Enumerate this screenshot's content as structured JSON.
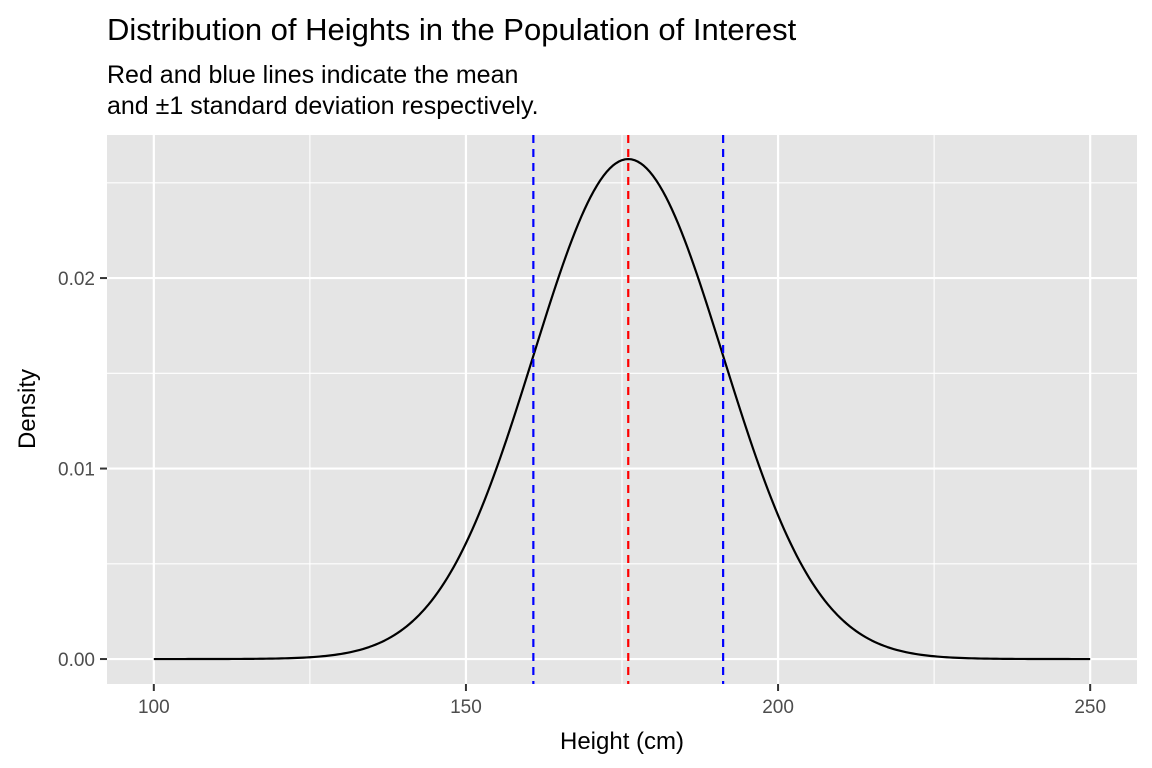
{
  "chart_data": {
    "type": "line",
    "title": "Distribution of Heights in the Population of Interest",
    "subtitle": [
      "Red and blue lines indicate the mean",
      "and ±1 standard deviation respectively."
    ],
    "xlabel": "Height (cm)",
    "ylabel": "Density",
    "xlim": [
      92.5,
      257.5
    ],
    "ylim": [
      -0.00131,
      0.02751
    ],
    "x_ticks": [
      100,
      150,
      200,
      250
    ],
    "x_tick_labels": [
      "100",
      "150",
      "200",
      "250"
    ],
    "x_minor_ticks": [
      125,
      175,
      225
    ],
    "y_ticks": [
      0,
      0.01,
      0.02
    ],
    "y_tick_labels": [
      "0.00",
      "0.01",
      "0.02"
    ],
    "y_minor_ticks": [
      0.005,
      0.015,
      0.025
    ],
    "grid": true,
    "panel_background": "#e5e5e5",
    "grid_color": "#ffffff",
    "series": [
      {
        "curve": "normal_density",
        "mean": 176,
        "sd": 15.2,
        "x_range": [
          100,
          250
        ],
        "color": "#000000"
      }
    ],
    "reference_lines": [
      {
        "role": "mean",
        "x": 176,
        "color": "#ff0000",
        "dash": "dashed"
      },
      {
        "role": "minus-one-sd",
        "x": 160.8,
        "color": "#0000ff",
        "dash": "dashed"
      },
      {
        "role": "plus-one-sd",
        "x": 191.2,
        "color": "#0000ff",
        "dash": "dashed"
      }
    ]
  }
}
